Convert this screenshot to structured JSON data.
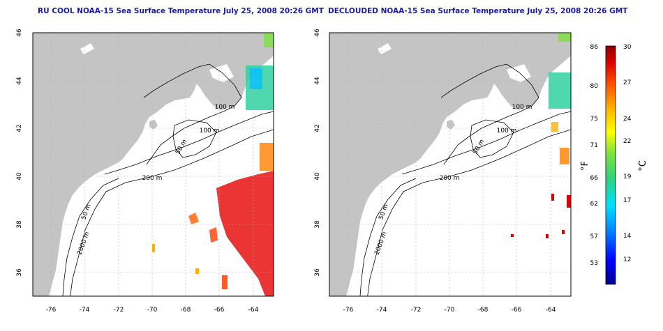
{
  "titles": {
    "left": "RU COOL NOAA-15 Sea Surface Temperature July 25, 2008 20:26 GMT",
    "right": "DECLOUDED NOAA-15 Sea Surface Temperature July 25, 2008 20:26 GMT"
  },
  "axes": {
    "lon_ticks": [
      "-76",
      "-74",
      "-72",
      "-70",
      "-68",
      "-66",
      "-64"
    ],
    "lat_ticks": [
      "46",
      "44",
      "42",
      "40",
      "38",
      "36"
    ]
  },
  "contour_labels": [
    "100 m",
    "100 m",
    "50 m",
    "200 m",
    "50 m",
    "2000 m"
  ],
  "colorbar": {
    "f_ticks": [
      "86",
      "80",
      "75",
      "71",
      "66",
      "62",
      "57",
      "53"
    ],
    "c_ticks": [
      "30",
      "27",
      "24",
      "22",
      "19",
      "17",
      "14",
      "12"
    ],
    "f_label": "°F",
    "c_label": "°C",
    "colors": [
      "#00008b",
      "#0000ff",
      "#0080ff",
      "#00e0ff",
      "#30d080",
      "#80e040",
      "#ffff00",
      "#ffb000",
      "#ff5000",
      "#dd0000",
      "#8b0000"
    ]
  },
  "colors": {
    "land": "#c4c4c4",
    "grid": "#b0b0b0",
    "title": "#1a1aa6"
  }
}
